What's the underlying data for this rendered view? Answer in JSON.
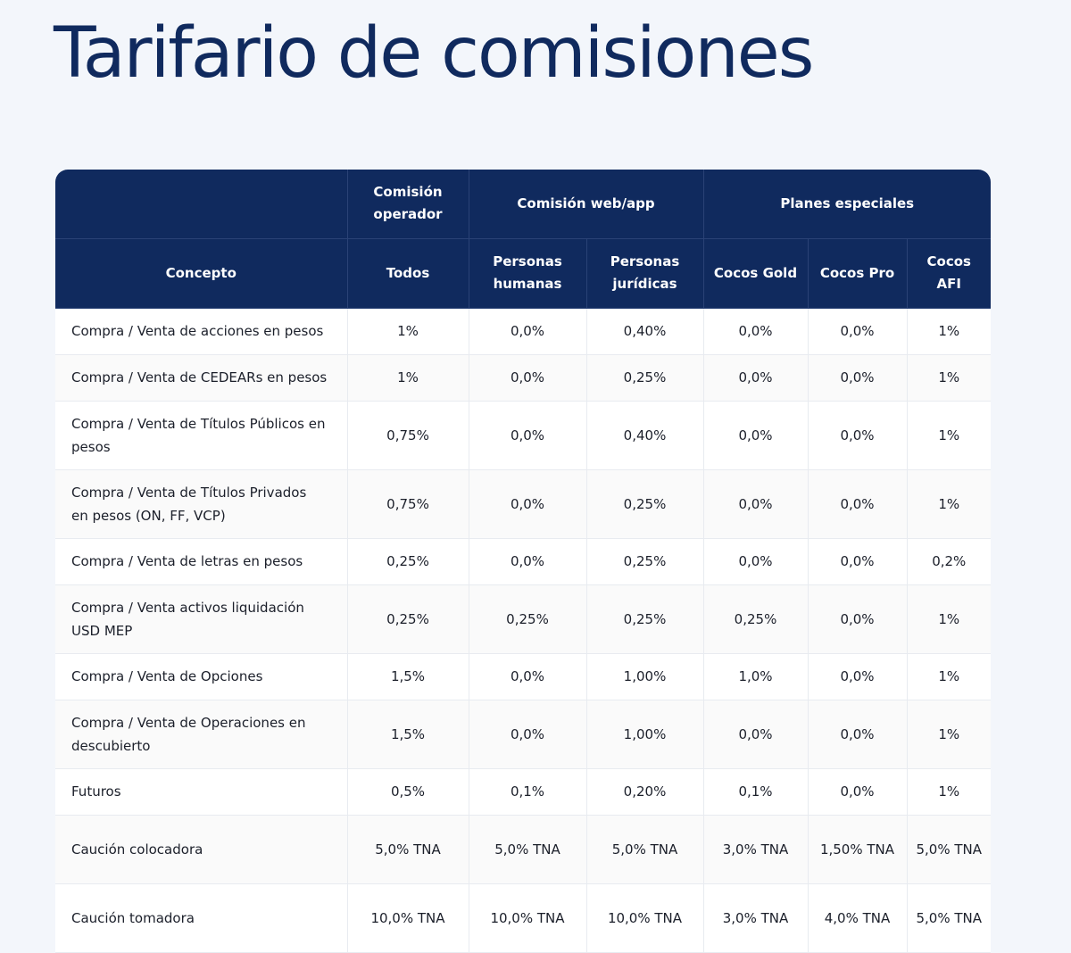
{
  "title": "Tarifario de comisiones",
  "table": {
    "group_headers": {
      "operator": "Comisión operador",
      "web_app": "Comisión web/app",
      "special": "Planes especiales"
    },
    "columns": {
      "concept": "Concepto",
      "all": "Todos",
      "individuals": "Personas humanas",
      "companies": "Personas jurídicas",
      "gold": "Cocos Gold",
      "pro": "Cocos Pro",
      "afi": "Cocos AFI"
    },
    "rows": [
      {
        "concept": "Compra / Venta de acciones en pesos",
        "all": "1%",
        "individuals": "0,0%",
        "companies": "0,40%",
        "gold": "0,0%",
        "pro": "0,0%",
        "afi": "1%"
      },
      {
        "concept": "Compra / Venta de CEDEARs en pesos",
        "all": "1%",
        "individuals": "0,0%",
        "companies": "0,25%",
        "gold": "0,0%",
        "pro": "0,0%",
        "afi": "1%"
      },
      {
        "concept": "Compra / Venta de Títulos Públicos en pesos",
        "all": "0,75%",
        "individuals": "0,0%",
        "companies": "0,40%",
        "gold": "0,0%",
        "pro": "0,0%",
        "afi": "1%"
      },
      {
        "concept": "Compra / Venta de Títulos Privados en pesos (ON, FF, VCP)",
        "all": "0,75%",
        "individuals": "0,0%",
        "companies": "0,25%",
        "gold": "0,0%",
        "pro": "0,0%",
        "afi": "1%"
      },
      {
        "concept": "Compra / Venta de letras en pesos",
        "all": "0,25%",
        "individuals": "0,0%",
        "companies": "0,25%",
        "gold": "0,0%",
        "pro": "0,0%",
        "afi": "0,2%"
      },
      {
        "concept": "Compra / Venta activos liquidación USD MEP",
        "all": "0,25%",
        "individuals": "0,25%",
        "companies": "0,25%",
        "gold": "0,25%",
        "pro": "0,0%",
        "afi": "1%"
      },
      {
        "concept": "Compra / Venta de Opciones",
        "all": "1,5%",
        "individuals": "0,0%",
        "companies": "1,00%",
        "gold": "1,0%",
        "pro": "0,0%",
        "afi": "1%"
      },
      {
        "concept": "Compra / Venta de Operaciones en descubierto",
        "all": "1,5%",
        "individuals": "0,0%",
        "companies": "1,00%",
        "gold": "0,0%",
        "pro": "0,0%",
        "afi": "1%"
      },
      {
        "concept": "Futuros",
        "all": "0,5%",
        "individuals": "0,1%",
        "companies": "0,20%",
        "gold": "0,1%",
        "pro": "0,0%",
        "afi": "1%"
      },
      {
        "concept": "Caución colocadora",
        "all": "5,0% TNA",
        "individuals": "5,0% TNA",
        "companies": "5,0% TNA",
        "gold": "3,0% TNA",
        "pro": "1,50% TNA",
        "afi": "5,0% TNA"
      },
      {
        "concept": "Caución tomadora",
        "all": "10,0% TNA",
        "individuals": "10,0% TNA",
        "companies": "10,0% TNA",
        "gold": "3,0% TNA",
        "pro": "4,0% TNA",
        "afi": "5,0% TNA"
      }
    ]
  }
}
